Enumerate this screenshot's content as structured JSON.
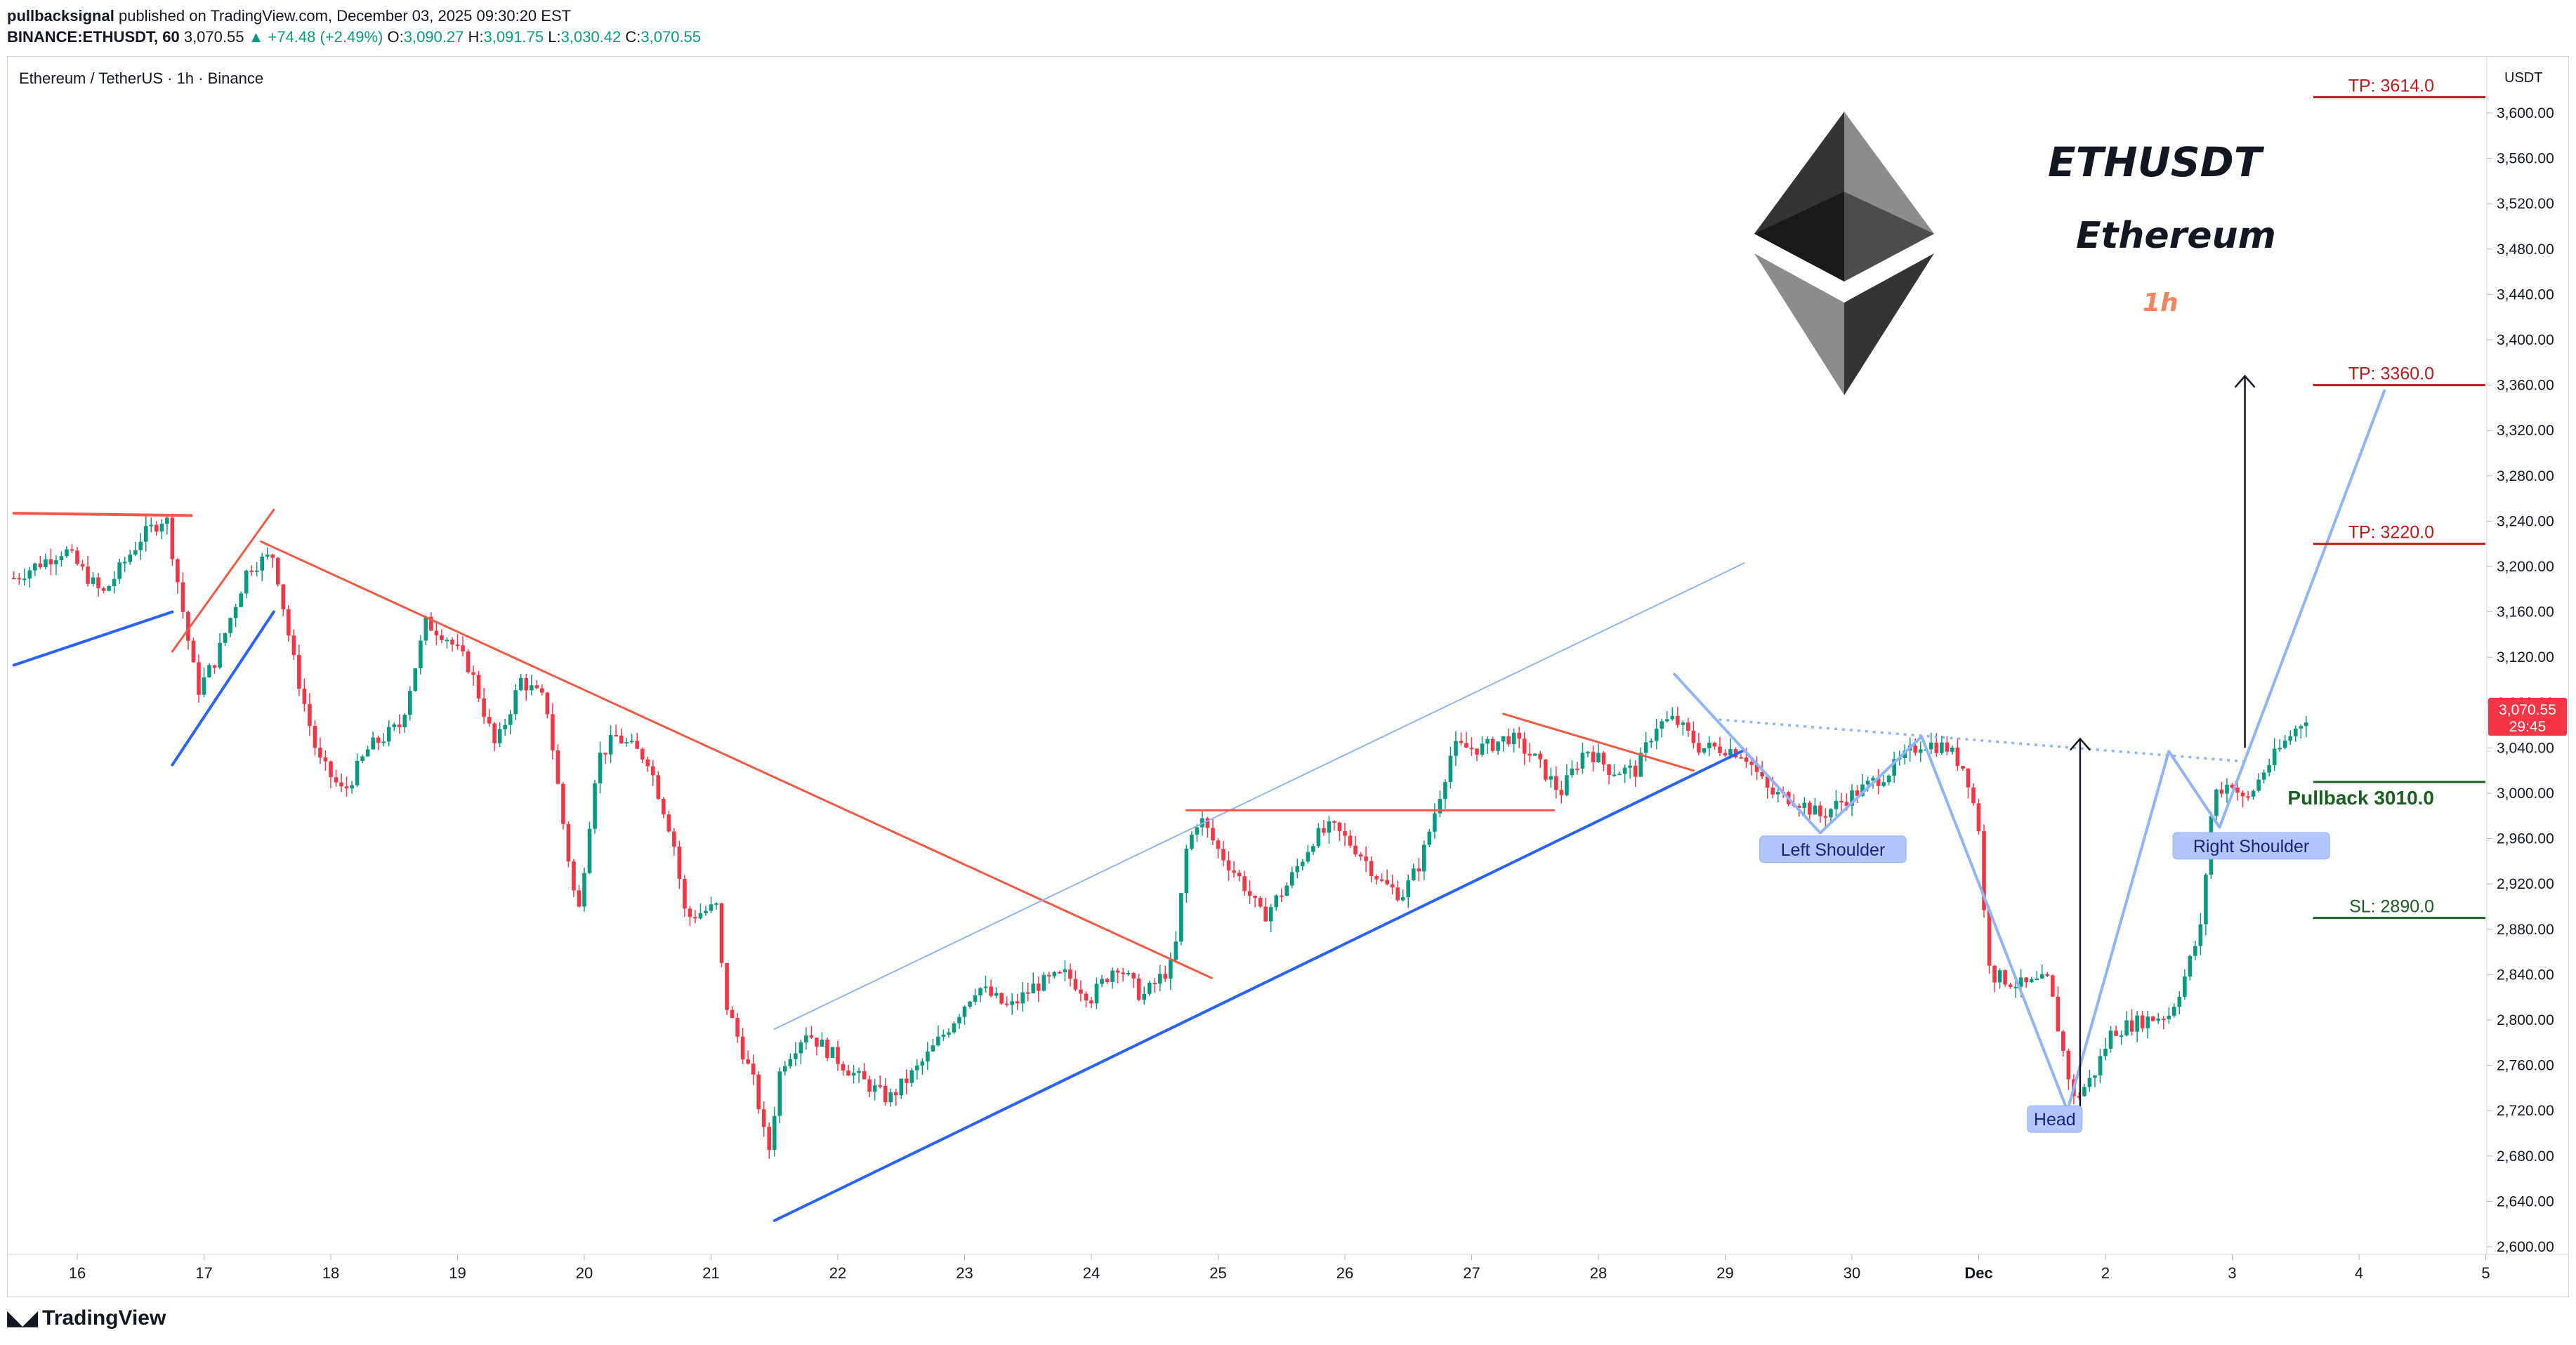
{
  "header": {
    "author": "pullbacksignal",
    "published": "published on TradingView.com, December 03, 2025 09:30:20 EST",
    "symbol": "BINANCE:ETHUSDT, 60",
    "last": "3,070.55",
    "change": "▲ +74.48 (+2.49%)",
    "o_label": "O:",
    "o": "3,090.27",
    "h_label": "H:",
    "h": "3,091.75",
    "l_label": "L:",
    "l": "3,030.42",
    "c_label": "C:",
    "c": "3,070.55"
  },
  "footer": {
    "brand": "TradingView",
    "icon": "tradingview-logo-icon"
  },
  "colors": {
    "up": "#089981",
    "down": "#f23645",
    "blue": "#2962ff",
    "lightblue": "#90b4f5",
    "red_line": "#f05a45",
    "tp": "#b71c1c",
    "sl": "#1b5e20"
  },
  "chart_data": {
    "type": "candlestick",
    "title": "Ethereum / TetherUS · 1h · Binance",
    "axis_unit": "USDT",
    "ylim": [
      2580,
      3640
    ],
    "y_ticks": [
      "3,600.00",
      "3,560.00",
      "3,520.00",
      "3,480.00",
      "3,440.00",
      "3,400.00",
      "3,360.00",
      "3,320.00",
      "3,280.00",
      "3,240.00",
      "3,200.00",
      "3,160.00",
      "3,120.00",
      "3,080.00",
      "3,040.00",
      "3,000.00",
      "2,960.00",
      "2,920.00",
      "2,880.00",
      "2,840.00",
      "2,800.00",
      "2,760.00",
      "2,720.00",
      "2,680.00",
      "2,640.00",
      "2,600.00"
    ],
    "x_ticks": [
      {
        "label": "16",
        "day": 16
      },
      {
        "label": "17",
        "day": 17
      },
      {
        "label": "18",
        "day": 18
      },
      {
        "label": "19",
        "day": 19
      },
      {
        "label": "20",
        "day": 20
      },
      {
        "label": "21",
        "day": 21
      },
      {
        "label": "22",
        "day": 22
      },
      {
        "label": "23",
        "day": 23
      },
      {
        "label": "24",
        "day": 24
      },
      {
        "label": "25",
        "day": 25
      },
      {
        "label": "26",
        "day": 26
      },
      {
        "label": "27",
        "day": 27
      },
      {
        "label": "28",
        "day": 28
      },
      {
        "label": "29",
        "day": 29
      },
      {
        "label": "30",
        "day": 30
      },
      {
        "label": "Dec",
        "day": 31
      },
      {
        "label": "2",
        "day": 32
      },
      {
        "label": "3",
        "day": 33
      },
      {
        "label": "4",
        "day": 34
      },
      {
        "label": "5",
        "day": 35
      }
    ],
    "price_path": [
      [
        15.5,
        3190
      ],
      [
        15.9,
        3215
      ],
      [
        16.2,
        3175
      ],
      [
        16.5,
        3225
      ],
      [
        16.7,
        3245
      ],
      [
        16.85,
        3150
      ],
      [
        16.95,
        3090
      ],
      [
        17.1,
        3120
      ],
      [
        17.35,
        3200
      ],
      [
        17.55,
        3210
      ],
      [
        17.7,
        3120
      ],
      [
        17.9,
        3030
      ],
      [
        18.1,
        3000
      ],
      [
        18.3,
        3040
      ],
      [
        18.55,
        3060
      ],
      [
        18.75,
        3150
      ],
      [
        18.9,
        3140
      ],
      [
        19.1,
        3110
      ],
      [
        19.3,
        3040
      ],
      [
        19.5,
        3100
      ],
      [
        19.7,
        3080
      ],
      [
        19.85,
        2960
      ],
      [
        19.95,
        2890
      ],
      [
        20.1,
        3030
      ],
      [
        20.25,
        3050
      ],
      [
        20.5,
        3030
      ],
      [
        20.7,
        2960
      ],
      [
        20.8,
        2890
      ],
      [
        21.05,
        2900
      ],
      [
        21.1,
        2820
      ],
      [
        21.35,
        2740
      ],
      [
        21.45,
        2680
      ],
      [
        21.55,
        2760
      ],
      [
        21.75,
        2790
      ],
      [
        21.95,
        2770
      ],
      [
        22.15,
        2750
      ],
      [
        22.4,
        2730
      ],
      [
        22.65,
        2760
      ],
      [
        22.85,
        2790
      ],
      [
        23.1,
        2830
      ],
      [
        23.35,
        2810
      ],
      [
        23.55,
        2830
      ],
      [
        23.8,
        2840
      ],
      [
        24.0,
        2820
      ],
      [
        24.2,
        2850
      ],
      [
        24.4,
        2820
      ],
      [
        24.65,
        2850
      ],
      [
        24.75,
        2950
      ],
      [
        24.85,
        2980
      ],
      [
        25.0,
        2950
      ],
      [
        25.2,
        2920
      ],
      [
        25.35,
        2890
      ],
      [
        25.55,
        2920
      ],
      [
        25.75,
        2960
      ],
      [
        25.9,
        2970
      ],
      [
        26.1,
        2950
      ],
      [
        26.3,
        2920
      ],
      [
        26.45,
        2910
      ],
      [
        26.6,
        2940
      ],
      [
        26.75,
        3000
      ],
      [
        26.85,
        3040
      ],
      [
        27.1,
        3040
      ],
      [
        27.3,
        3050
      ],
      [
        27.5,
        3030
      ],
      [
        27.7,
        3000
      ],
      [
        27.9,
        3040
      ],
      [
        28.1,
        3020
      ],
      [
        28.3,
        3020
      ],
      [
        28.45,
        3060
      ],
      [
        28.6,
        3065
      ],
      [
        28.8,
        3040
      ],
      [
        29.0,
        3040
      ],
      [
        29.15,
        3035
      ],
      [
        29.35,
        3000
      ],
      [
        29.55,
        2995
      ],
      [
        29.75,
        2980
      ],
      [
        29.95,
        2995
      ],
      [
        30.1,
        3005
      ],
      [
        30.3,
        3020
      ],
      [
        30.55,
        3045
      ],
      [
        30.75,
        3040
      ],
      [
        30.9,
        3020
      ],
      [
        31.0,
        2970
      ],
      [
        31.05,
        2880
      ],
      [
        31.1,
        2840
      ],
      [
        31.35,
        2830
      ],
      [
        31.55,
        2835
      ],
      [
        31.65,
        2780
      ],
      [
        31.75,
        2730
      ],
      [
        31.9,
        2750
      ],
      [
        32.05,
        2790
      ],
      [
        32.3,
        2800
      ],
      [
        32.5,
        2805
      ],
      [
        32.6,
        2830
      ],
      [
        32.75,
        2880
      ],
      [
        32.85,
        3000
      ],
      [
        33.0,
        3010
      ],
      [
        33.1,
        2990
      ],
      [
        33.25,
        3020
      ],
      [
        33.45,
        3050
      ],
      [
        33.6,
        3070
      ]
    ],
    "lines": [
      {
        "color": "red_line",
        "width": 4,
        "pts": [
          [
            15.5,
            3247
          ],
          [
            16.9,
            3245
          ]
        ]
      },
      {
        "color": "blue",
        "width": 4,
        "pts": [
          [
            15.5,
            3113
          ],
          [
            16.75,
            3160
          ]
        ]
      },
      {
        "color": "red_line",
        "width": 3,
        "pts": [
          [
            16.75,
            3125
          ],
          [
            17.55,
            3250
          ]
        ]
      },
      {
        "color": "blue",
        "width": 4,
        "pts": [
          [
            16.75,
            3025
          ],
          [
            17.55,
            3160
          ]
        ]
      },
      {
        "color": "red_line",
        "width": 3,
        "pts": [
          [
            17.45,
            3222
          ],
          [
            24.95,
            2837
          ]
        ]
      },
      {
        "color": "lightblue",
        "width": 2,
        "pts": [
          [
            21.5,
            2792
          ],
          [
            29.15,
            3203
          ]
        ]
      },
      {
        "color": "blue",
        "width": 4,
        "pts": [
          [
            21.5,
            2623
          ],
          [
            29.15,
            3038
          ]
        ]
      },
      {
        "color": "red_line",
        "width": 3,
        "pts": [
          [
            24.75,
            2985
          ],
          [
            27.65,
            2985
          ]
        ]
      },
      {
        "color": "red_line",
        "width": 3,
        "pts": [
          [
            27.25,
            3070
          ],
          [
            28.75,
            3020
          ]
        ]
      },
      {
        "color": "lightblue",
        "width": 4,
        "pts": [
          [
            28.6,
            3105
          ],
          [
            29.75,
            2965
          ],
          [
            30.55,
            3050
          ],
          [
            31.7,
            2720
          ],
          [
            32.5,
            3037
          ],
          [
            32.9,
            2970
          ],
          [
            34.2,
            3355
          ]
        ]
      }
    ],
    "dotted_neckline": {
      "color": "lightblue",
      "pts": [
        [
          28.95,
          3065
        ],
        [
          33.1,
          3028
        ]
      ]
    },
    "arrows": [
      {
        "x": 31.8,
        "from": 2720,
        "to": 3048
      },
      {
        "x": 33.1,
        "from": 3040,
        "to": 3368
      }
    ],
    "levels": [
      {
        "label": "TP: 3614.0",
        "price": 3614,
        "color": "tp"
      },
      {
        "label": "TP: 3360.0",
        "price": 3360,
        "color": "tp"
      },
      {
        "label": "TP: 3220.0",
        "price": 3220,
        "color": "tp"
      },
      {
        "label": "Pullback 3010.0",
        "price": 3010,
        "color": "sl",
        "bold": true
      },
      {
        "label": "SL: 2890.0",
        "price": 2890,
        "color": "sl"
      }
    ],
    "pattern_labels": [
      {
        "text": "Left Shoulder",
        "x": 29.85,
        "price": 2950
      },
      {
        "text": "Head",
        "x": 31.6,
        "price": 2712
      },
      {
        "text": "Right Shoulder",
        "x": 33.15,
        "price": 2953
      }
    ],
    "overlay_text": {
      "symbol": "ETHUSDT",
      "name": "Ethereum",
      "timeframe": "1h"
    },
    "current_price": {
      "price": "3,070.55",
      "countdown": "29:45",
      "value": 3070.55
    },
    "logo": "ethereum-diamond-icon"
  }
}
